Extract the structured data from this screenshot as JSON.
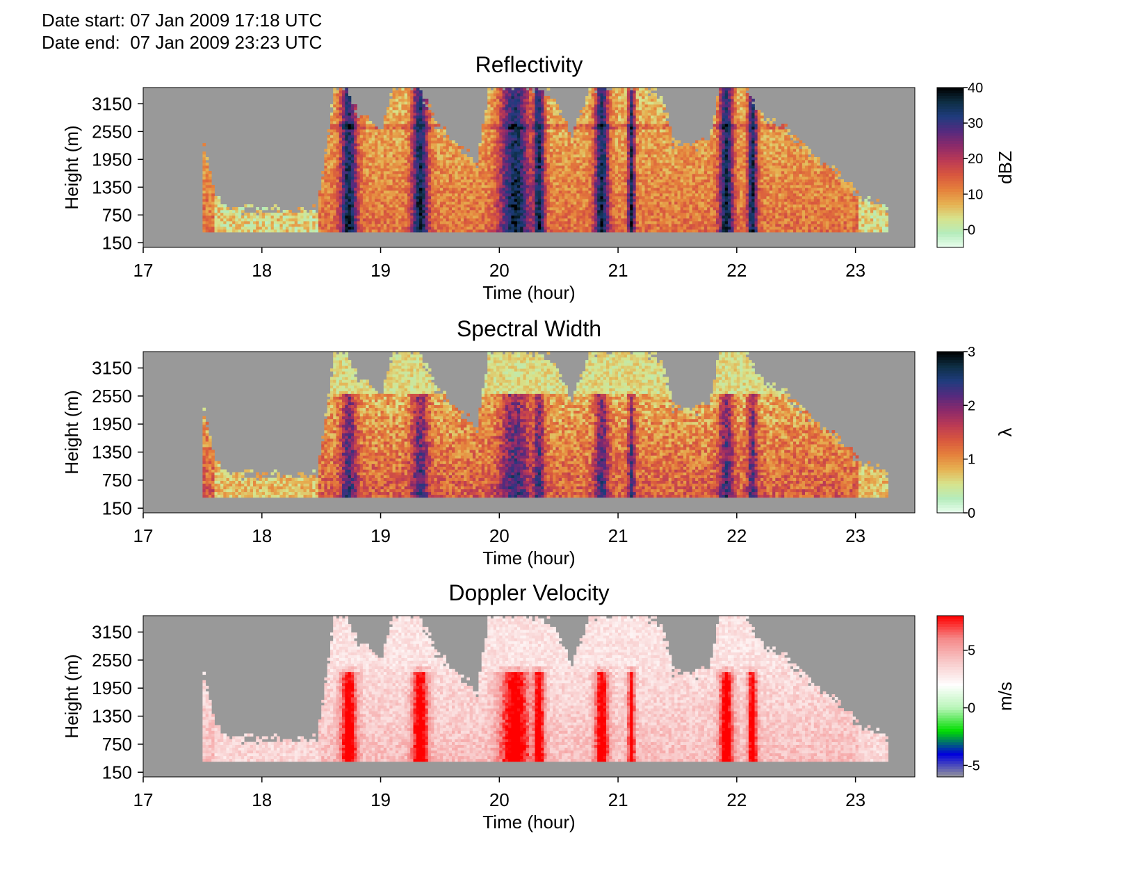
{
  "header": {
    "date_start": "Date start: 07 Jan 2009 17:18 UTC",
    "date_end": "Date end:  07 Jan 2009 23:23 UTC"
  },
  "colors": {
    "no_data": "#999999",
    "axis": "#000000",
    "background": "#ffffff"
  },
  "chart_data": [
    {
      "type": "heatmap",
      "title": "Reflectivity",
      "xlabel": "Time (hour)",
      "ylabel": "Height (m)",
      "xlim": [
        17,
        23.5
      ],
      "ylim": [
        50,
        3500
      ],
      "xticks": [
        17,
        18,
        19,
        20,
        21,
        22,
        23
      ],
      "yticks": [
        150,
        750,
        1350,
        1950,
        2550,
        3150
      ],
      "colorbar": {
        "label": "dBZ",
        "range": [
          -5,
          40
        ],
        "ticks": [
          0,
          10,
          20,
          30,
          40
        ],
        "colors": [
          "#ebfff0",
          "#b5ecbb",
          "#d7e38c",
          "#e6b152",
          "#e5803c",
          "#d8573e",
          "#bb3a55",
          "#8c2a6a",
          "#552a7e",
          "#1f3c7e",
          "#0e2f45",
          "#000000"
        ]
      },
      "echo_top_height_m": [
        [
          17.5,
          2150
        ],
        [
          17.55,
          1700
        ],
        [
          17.6,
          1150
        ],
        [
          17.7,
          850
        ],
        [
          18.0,
          850
        ],
        [
          18.3,
          800
        ],
        [
          18.45,
          850
        ],
        [
          18.55,
          2500
        ],
        [
          18.6,
          3500
        ],
        [
          18.7,
          3500
        ],
        [
          18.8,
          2900
        ],
        [
          19.0,
          2600
        ],
        [
          19.1,
          3500
        ],
        [
          19.3,
          3500
        ],
        [
          19.45,
          2700
        ],
        [
          19.6,
          2350
        ],
        [
          19.8,
          1800
        ],
        [
          19.9,
          3500
        ],
        [
          20.2,
          3500
        ],
        [
          20.45,
          3300
        ],
        [
          20.6,
          2400
        ],
        [
          20.75,
          3500
        ],
        [
          21.0,
          3450
        ],
        [
          21.2,
          3500
        ],
        [
          21.35,
          3300
        ],
        [
          21.45,
          2300
        ],
        [
          21.6,
          2200
        ],
        [
          21.75,
          2300
        ],
        [
          21.85,
          3500
        ],
        [
          22.05,
          3500
        ],
        [
          22.2,
          2800
        ],
        [
          22.4,
          2600
        ],
        [
          22.6,
          2100
        ],
        [
          22.7,
          1850
        ],
        [
          22.85,
          1600
        ],
        [
          23.0,
          1200
        ],
        [
          23.15,
          1000
        ],
        [
          23.25,
          800
        ]
      ]
    },
    {
      "type": "heatmap",
      "title": "Spectral Width",
      "xlabel": "Time (hour)",
      "ylabel": "Height (m)",
      "xlim": [
        17,
        23.5
      ],
      "ylim": [
        50,
        3500
      ],
      "xticks": [
        17,
        18,
        19,
        20,
        21,
        22,
        23
      ],
      "yticks": [
        150,
        750,
        1350,
        1950,
        2550,
        3150
      ],
      "colorbar": {
        "label": "λ",
        "range": [
          0,
          3
        ],
        "ticks": [
          0,
          1,
          2,
          3
        ],
        "colors": [
          "#ebfff0",
          "#b5ecbb",
          "#d7e38c",
          "#e6b152",
          "#e5803c",
          "#d8573e",
          "#bb3a55",
          "#8c2a6a",
          "#552a7e",
          "#1f3c7e",
          "#0e2f45",
          "#000000"
        ]
      },
      "echo_top_height_m": [
        [
          17.5,
          2150
        ],
        [
          17.55,
          1700
        ],
        [
          17.6,
          1150
        ],
        [
          17.7,
          850
        ],
        [
          18.0,
          850
        ],
        [
          18.3,
          800
        ],
        [
          18.45,
          850
        ],
        [
          18.55,
          2500
        ],
        [
          18.6,
          3500
        ],
        [
          18.7,
          3500
        ],
        [
          18.8,
          2900
        ],
        [
          19.0,
          2600
        ],
        [
          19.1,
          3500
        ],
        [
          19.3,
          3500
        ],
        [
          19.45,
          2700
        ],
        [
          19.6,
          2350
        ],
        [
          19.8,
          1800
        ],
        [
          19.9,
          3500
        ],
        [
          20.2,
          3500
        ],
        [
          20.45,
          3300
        ],
        [
          20.6,
          2400
        ],
        [
          20.75,
          3500
        ],
        [
          21.0,
          3450
        ],
        [
          21.2,
          3500
        ],
        [
          21.35,
          3300
        ],
        [
          21.45,
          2300
        ],
        [
          21.6,
          2200
        ],
        [
          21.75,
          2300
        ],
        [
          21.85,
          3500
        ],
        [
          22.05,
          3500
        ],
        [
          22.2,
          2800
        ],
        [
          22.4,
          2600
        ],
        [
          22.6,
          2100
        ],
        [
          22.7,
          1850
        ],
        [
          22.85,
          1600
        ],
        [
          23.0,
          1200
        ],
        [
          23.15,
          1000
        ],
        [
          23.25,
          800
        ]
      ]
    },
    {
      "type": "heatmap",
      "title": "Doppler Velocity",
      "xlabel": "Time (hour)",
      "ylabel": "Height (m)",
      "xlim": [
        17,
        23.5
      ],
      "ylim": [
        50,
        3500
      ],
      "xticks": [
        17,
        18,
        19,
        20,
        21,
        22,
        23
      ],
      "yticks": [
        150,
        750,
        1350,
        1950,
        2550,
        3150
      ],
      "colorbar": {
        "label": "m/s",
        "range": [
          -6,
          8
        ],
        "ticks": [
          -5,
          0,
          5
        ],
        "colors": [
          "#999999",
          "#0000dd",
          "#00dd00",
          "#b8f5b8",
          "#ffffff",
          "#f8caca",
          "#f58a8a",
          "#ff0000"
        ]
      },
      "echo_top_height_m": [
        [
          17.5,
          2150
        ],
        [
          17.55,
          1700
        ],
        [
          17.6,
          1150
        ],
        [
          17.7,
          850
        ],
        [
          18.0,
          850
        ],
        [
          18.3,
          800
        ],
        [
          18.45,
          850
        ],
        [
          18.55,
          2500
        ],
        [
          18.6,
          3500
        ],
        [
          18.7,
          3500
        ],
        [
          18.8,
          2900
        ],
        [
          19.0,
          2600
        ],
        [
          19.1,
          3500
        ],
        [
          19.3,
          3500
        ],
        [
          19.45,
          2700
        ],
        [
          19.6,
          2350
        ],
        [
          19.8,
          1800
        ],
        [
          19.9,
          3500
        ],
        [
          20.2,
          3500
        ],
        [
          20.45,
          3300
        ],
        [
          20.6,
          2400
        ],
        [
          20.75,
          3500
        ],
        [
          21.0,
          3450
        ],
        [
          21.2,
          3500
        ],
        [
          21.35,
          3300
        ],
        [
          21.45,
          2300
        ],
        [
          21.6,
          2200
        ],
        [
          21.75,
          2300
        ],
        [
          21.85,
          3500
        ],
        [
          22.05,
          3500
        ],
        [
          22.2,
          2800
        ],
        [
          22.4,
          2600
        ],
        [
          22.6,
          2100
        ],
        [
          22.7,
          1850
        ],
        [
          22.85,
          1600
        ],
        [
          23.0,
          1200
        ],
        [
          23.15,
          1000
        ],
        [
          23.25,
          800
        ]
      ]
    }
  ]
}
